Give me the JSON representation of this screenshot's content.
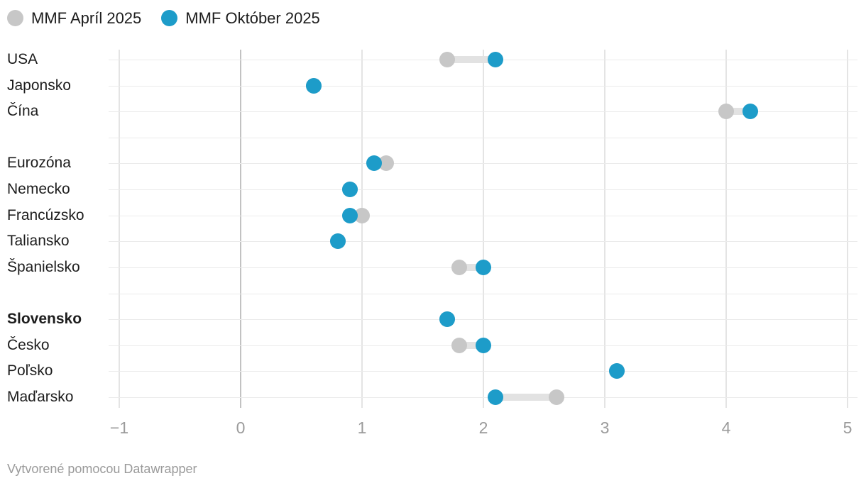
{
  "legend": {
    "items": [
      {
        "id": "april",
        "label": "MMF Apríl 2025",
        "color": "#c7c7c7"
      },
      {
        "id": "october",
        "label": "MMF Október 2025",
        "color": "#1d9cc9"
      }
    ]
  },
  "footer": {
    "text": "Vytvorené pomocou Datawrapper"
  },
  "chart_data": {
    "type": "scatter",
    "subtype": "dumbbell-range-plot",
    "title": "",
    "xlabel": "",
    "ylabel": "",
    "xlim": [
      -1,
      5
    ],
    "grid": true,
    "legend_position": "top",
    "x_ticks": [
      {
        "label": "−1",
        "value": -1
      },
      {
        "label": "0",
        "value": 0
      },
      {
        "label": "1",
        "value": 1
      },
      {
        "label": "2",
        "value": 2
      },
      {
        "label": "3",
        "value": 3
      },
      {
        "label": "4",
        "value": 4
      },
      {
        "label": "5",
        "value": 5
      }
    ],
    "categories": [
      "USA",
      "Japonsko",
      "Čína",
      "Eurozóna",
      "Nemecko",
      "Francúzsko",
      "Taliansko",
      "Španielsko",
      "Slovensko",
      "Česko",
      "Poľsko",
      "Maďarsko"
    ],
    "series": [
      {
        "name": "MMF Apríl 2025",
        "values": [
          1.7,
          0.6,
          4.0,
          1.2,
          0.9,
          1.0,
          0.8,
          1.8,
          1.7,
          1.8,
          3.1,
          2.6
        ]
      },
      {
        "name": "MMF Október 2025",
        "values": [
          2.1,
          0.6,
          4.2,
          1.1,
          0.9,
          0.9,
          0.8,
          2.0,
          1.7,
          2.0,
          3.1,
          2.1
        ]
      }
    ],
    "rows": [
      {
        "label": "USA",
        "april": 1.7,
        "october": 2.1
      },
      {
        "label": "Japonsko",
        "april": 0.6,
        "october": 0.6
      },
      {
        "label": "Čína",
        "april": 4.0,
        "october": 4.2
      },
      {
        "separator": true
      },
      {
        "label": "Eurozóna",
        "april": 1.2,
        "october": 1.1
      },
      {
        "label": "Nemecko",
        "april": 0.9,
        "october": 0.9
      },
      {
        "label": "Francúzsko",
        "april": 1.0,
        "october": 0.9
      },
      {
        "label": "Taliansko",
        "april": 0.8,
        "october": 0.8
      },
      {
        "label": "Španielsko",
        "april": 1.8,
        "october": 2.0
      },
      {
        "separator": true
      },
      {
        "label": "Slovensko",
        "april": 1.7,
        "october": 1.7,
        "bold": true
      },
      {
        "label": "Česko",
        "april": 1.8,
        "october": 2.0
      },
      {
        "label": "Poľsko",
        "april": 3.1,
        "october": 3.1
      },
      {
        "label": "Maďarsko",
        "april": 2.6,
        "october": 2.1
      }
    ],
    "colors": {
      "april": "#c7c7c7",
      "october": "#1d9cc9",
      "connector": "#e2e2e2",
      "row_line": "#ebebeb",
      "grid_line": "#e4e4e4",
      "zero_line": "#c2c2c2",
      "axis_text": "#9b9b9b",
      "label_text": "#1d1d1d",
      "footer_text": "#9a9a9a"
    }
  }
}
